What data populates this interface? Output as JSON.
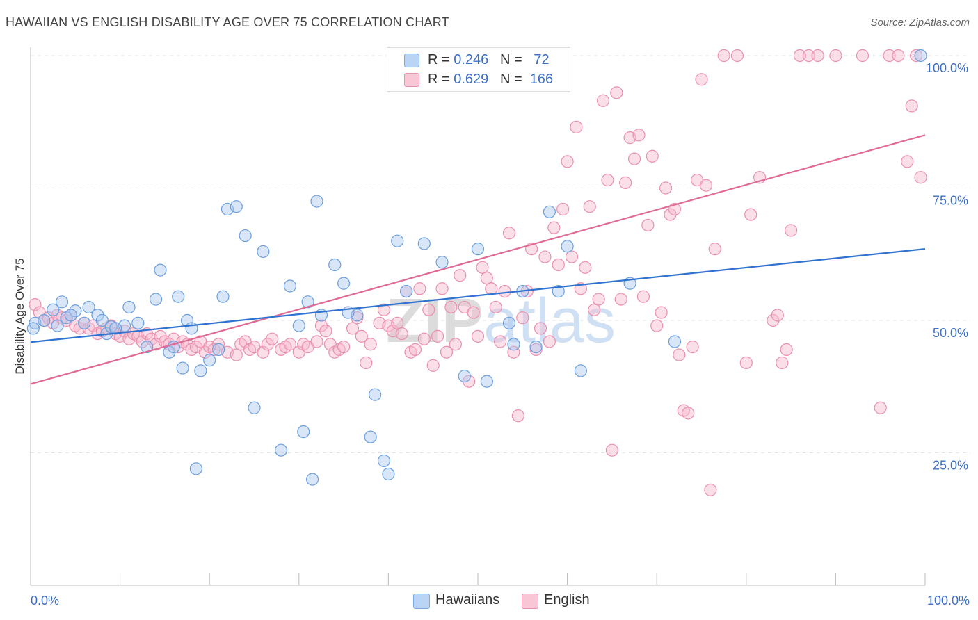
{
  "title": "HAWAIIAN VS ENGLISH DISABILITY AGE OVER 75 CORRELATION CHART",
  "source": "Source: ZipAtlas.com",
  "watermark": "ZIPatlas",
  "colors": {
    "hawaiians_fill": "#a8c8f0",
    "hawaiians_stroke": "#6a9fe0",
    "hawaiians_line": "#2f72d0",
    "english_fill": "#f7b8cc",
    "english_stroke": "#ea8fae",
    "english_line": "#e06a96",
    "axis_label": "#3d6fc4",
    "grid": "#e3e3e3"
  },
  "legend": {
    "hawaiians": {
      "r_label": "R = ",
      "r_value": "0.246",
      "n_label": "N = ",
      "n_value": "72"
    },
    "english": {
      "r_label": "R = ",
      "r_value": "0.629",
      "n_label": "N = ",
      "n_value": "166"
    }
  },
  "bottom_legend": {
    "hawaiians": "Hawaiians",
    "english": "English"
  },
  "chart_data": {
    "type": "scatter",
    "title": "HAWAIIAN VS ENGLISH DISABILITY AGE OVER 75 CORRELATION CHART",
    "xlabel": "",
    "ylabel": "Disability Age Over 75",
    "xlim": [
      0,
      100
    ],
    "ylim": [
      0,
      104
    ],
    "x_tick_labels": [
      "0.0%",
      "100.0%"
    ],
    "y_ticks": [
      25,
      50,
      75,
      100
    ],
    "y_tick_labels": [
      "25.0%",
      "50.0%",
      "75.0%",
      "100.0%"
    ],
    "grid": true,
    "legend_position": "top-center",
    "series": [
      {
        "name": "Hawaiians",
        "trend": {
          "x": [
            0,
            100
          ],
          "y": [
            45.9,
            63.5
          ]
        },
        "points": [
          [
            0.5,
            49.5
          ],
          [
            1.5,
            50
          ],
          [
            2.5,
            52
          ],
          [
            3,
            49
          ],
          [
            3.5,
            53.5
          ],
          [
            4,
            50.5
          ],
          [
            5,
            51.8
          ],
          [
            6,
            49.5
          ],
          [
            6.5,
            52.5
          ],
          [
            7.5,
            51
          ],
          [
            8,
            50
          ],
          [
            8.5,
            47.5
          ],
          [
            9,
            48.8
          ],
          [
            10.5,
            49
          ],
          [
            11,
            52.5
          ],
          [
            12,
            49.5
          ],
          [
            13,
            45
          ],
          [
            14,
            54
          ],
          [
            14.5,
            59.5
          ],
          [
            15.5,
            44
          ],
          [
            16,
            45
          ],
          [
            16.5,
            54.5
          ],
          [
            17,
            41
          ],
          [
            17.5,
            50
          ],
          [
            18,
            48.5
          ],
          [
            18.5,
            22
          ],
          [
            19,
            40.5
          ],
          [
            20,
            42.5
          ],
          [
            21.5,
            54.5
          ],
          [
            22,
            71
          ],
          [
            23,
            71.5
          ],
          [
            24,
            66
          ],
          [
            25,
            33.5
          ],
          [
            26,
            63
          ],
          [
            28,
            25.5
          ],
          [
            29,
            56.5
          ],
          [
            30,
            49
          ],
          [
            30.5,
            29
          ],
          [
            31,
            53.5
          ],
          [
            31.5,
            20
          ],
          [
            32,
            72.5
          ],
          [
            32.5,
            51
          ],
          [
            34,
            60.5
          ],
          [
            35,
            57
          ],
          [
            36.5,
            51
          ],
          [
            38,
            28
          ],
          [
            38.5,
            36
          ],
          [
            39.5,
            23.5
          ],
          [
            40,
            21
          ],
          [
            41,
            65
          ],
          [
            42,
            55.5
          ],
          [
            44,
            64.5
          ],
          [
            46,
            61
          ],
          [
            48.5,
            39.5
          ],
          [
            50,
            63.5
          ],
          [
            51,
            38.5
          ],
          [
            53.5,
            49.5
          ],
          [
            54,
            45.5
          ],
          [
            55,
            55.5
          ],
          [
            56.5,
            45
          ],
          [
            58,
            70.5
          ],
          [
            59,
            55.5
          ],
          [
            60,
            64
          ],
          [
            61.5,
            40.5
          ],
          [
            67,
            57
          ],
          [
            72,
            46
          ],
          [
            99.5,
            100
          ],
          [
            35.5,
            51.5
          ],
          [
            21,
            44.5
          ],
          [
            9.5,
            48.5
          ],
          [
            4.5,
            51
          ],
          [
            0.3,
            48.5
          ]
        ]
      },
      {
        "name": "English",
        "trend": {
          "x": [
            0,
            100
          ],
          "y": [
            38.0,
            85.0
          ]
        },
        "points": [
          [
            0.5,
            53
          ],
          [
            1,
            51.5
          ],
          [
            1.5,
            50
          ],
          [
            2,
            50.5
          ],
          [
            2.5,
            49.5
          ],
          [
            3,
            51
          ],
          [
            3.5,
            50.5
          ],
          [
            4,
            50
          ],
          [
            4.5,
            51
          ],
          [
            5,
            49
          ],
          [
            5.5,
            48.5
          ],
          [
            6,
            49.5
          ],
          [
            6.5,
            48.5
          ],
          [
            7,
            49
          ],
          [
            7.5,
            47.5
          ],
          [
            8,
            48
          ],
          [
            8.5,
            48.5
          ],
          [
            9,
            49
          ],
          [
            9.5,
            47.5
          ],
          [
            10,
            47
          ],
          [
            10.5,
            48
          ],
          [
            11,
            46.5
          ],
          [
            11.5,
            47.5
          ],
          [
            12,
            47
          ],
          [
            12.5,
            46
          ],
          [
            13,
            47.5
          ],
          [
            13.5,
            46.5
          ],
          [
            14,
            45.5
          ],
          [
            14.5,
            47
          ],
          [
            15,
            46
          ],
          [
            15.5,
            45.5
          ],
          [
            16,
            46.5
          ],
          [
            16.5,
            45
          ],
          [
            17,
            46
          ],
          [
            17.5,
            45.5
          ],
          [
            18,
            44.5
          ],
          [
            18.5,
            45
          ],
          [
            19,
            46
          ],
          [
            19.5,
            44
          ],
          [
            20,
            45
          ],
          [
            20.5,
            44.5
          ],
          [
            21,
            45.5
          ],
          [
            22,
            44
          ],
          [
            23,
            43.5
          ],
          [
            23.5,
            45.5
          ],
          [
            24,
            46
          ],
          [
            24.5,
            44.5
          ],
          [
            25,
            45
          ],
          [
            26,
            44
          ],
          [
            26.5,
            45.5
          ],
          [
            27,
            46.5
          ],
          [
            28,
            44.5
          ],
          [
            28.5,
            45
          ],
          [
            29,
            45.5
          ],
          [
            30,
            44
          ],
          [
            30.5,
            45.5
          ],
          [
            31,
            45
          ],
          [
            32,
            46
          ],
          [
            32.5,
            49
          ],
          [
            33,
            48
          ],
          [
            33.5,
            45.5
          ],
          [
            34,
            44
          ],
          [
            34.5,
            44.5
          ],
          [
            35,
            45
          ],
          [
            36,
            48.5
          ],
          [
            36.5,
            50.5
          ],
          [
            37,
            47
          ],
          [
            37.5,
            42
          ],
          [
            38,
            45.5
          ],
          [
            39,
            49.5
          ],
          [
            39.5,
            52
          ],
          [
            40,
            49
          ],
          [
            40.5,
            48
          ],
          [
            41,
            49.5
          ],
          [
            41.5,
            47.5
          ],
          [
            42,
            55.5
          ],
          [
            42.5,
            44
          ],
          [
            43,
            44.5
          ],
          [
            43.5,
            56
          ],
          [
            44,
            46.5
          ],
          [
            44.5,
            52
          ],
          [
            45,
            41.5
          ],
          [
            45.5,
            47
          ],
          [
            46,
            56
          ],
          [
            46.5,
            44
          ],
          [
            47,
            52.5
          ],
          [
            47.5,
            45.5
          ],
          [
            48,
            58.5
          ],
          [
            48.5,
            52.5
          ],
          [
            49,
            38.5
          ],
          [
            49.5,
            51.5
          ],
          [
            50,
            47
          ],
          [
            50.5,
            60
          ],
          [
            51,
            58
          ],
          [
            51.5,
            56
          ],
          [
            52,
            52.5
          ],
          [
            52.5,
            46
          ],
          [
            53,
            55.5
          ],
          [
            53.5,
            66.5
          ],
          [
            54,
            44
          ],
          [
            54.5,
            32
          ],
          [
            55,
            50.5
          ],
          [
            55.5,
            55.5
          ],
          [
            56,
            63.5
          ],
          [
            56.5,
            44.5
          ],
          [
            57,
            48.5
          ],
          [
            57.5,
            62
          ],
          [
            58,
            46
          ],
          [
            58.5,
            67.5
          ],
          [
            59,
            60.5
          ],
          [
            59.5,
            71
          ],
          [
            60,
            80
          ],
          [
            60.5,
            62
          ],
          [
            61,
            86.5
          ],
          [
            61.5,
            56
          ],
          [
            62,
            60
          ],
          [
            62.5,
            71.5
          ],
          [
            63,
            52
          ],
          [
            63.5,
            54
          ],
          [
            64,
            91.5
          ],
          [
            64.5,
            76.5
          ],
          [
            65,
            25.5
          ],
          [
            65.5,
            93
          ],
          [
            66,
            54
          ],
          [
            66.5,
            76
          ],
          [
            67,
            84.5
          ],
          [
            67.5,
            80.5
          ],
          [
            68,
            85
          ],
          [
            68.5,
            54.5
          ],
          [
            69,
            68
          ],
          [
            69.5,
            81
          ],
          [
            70,
            49
          ],
          [
            70.5,
            51.5
          ],
          [
            71,
            75
          ],
          [
            71.5,
            70
          ],
          [
            72,
            71
          ],
          [
            72.5,
            43.5
          ],
          [
            73,
            33
          ],
          [
            73.5,
            32.5
          ],
          [
            74,
            45
          ],
          [
            74.5,
            76.5
          ],
          [
            75,
            95.5
          ],
          [
            75.5,
            75.5
          ],
          [
            76,
            18
          ],
          [
            76.5,
            63.5
          ],
          [
            77.5,
            100
          ],
          [
            79,
            100
          ],
          [
            80,
            42
          ],
          [
            80.5,
            70
          ],
          [
            81.5,
            77
          ],
          [
            83,
            50
          ],
          [
            83.5,
            51
          ],
          [
            84,
            42
          ],
          [
            84.5,
            44.5
          ],
          [
            85,
            67
          ],
          [
            86,
            100
          ],
          [
            87,
            100
          ],
          [
            88,
            100
          ],
          [
            90,
            100
          ],
          [
            93,
            100
          ],
          [
            95,
            33.5
          ],
          [
            96,
            100
          ],
          [
            97,
            100
          ],
          [
            99,
            100
          ],
          [
            98.5,
            90.5
          ],
          [
            98,
            80
          ],
          [
            99.5,
            77
          ]
        ]
      }
    ]
  }
}
